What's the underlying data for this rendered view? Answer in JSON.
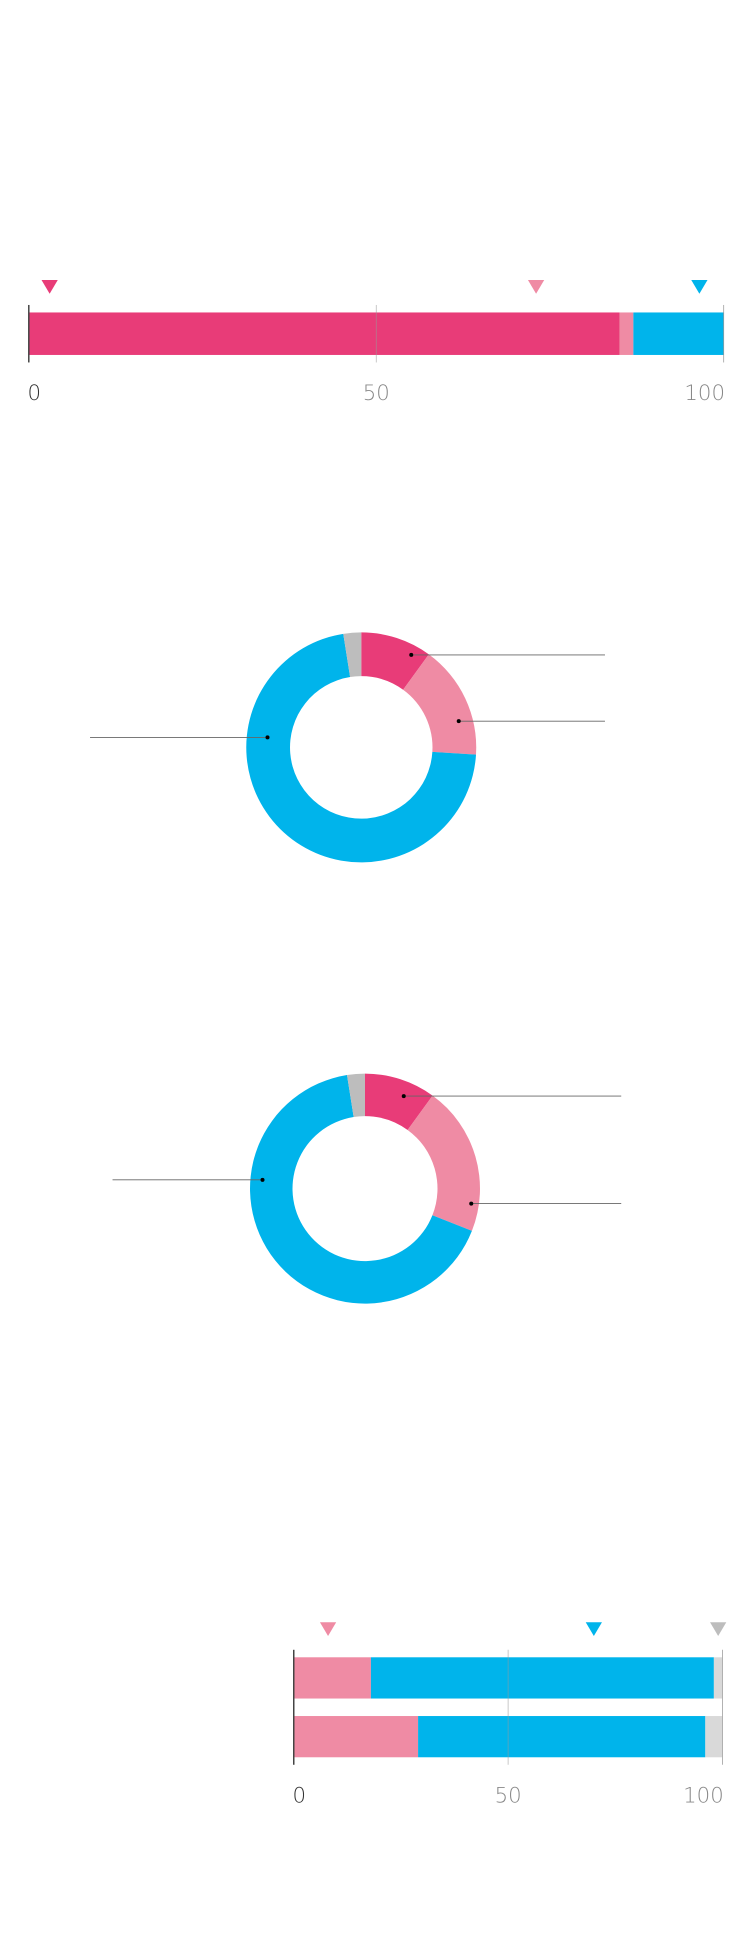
{
  "colors": {
    "magenta": "#e83c78",
    "pink": "#ef8ba4",
    "cyan": "#00b4eb",
    "gray": "#bdbdbd",
    "lightgray": "#d9d9d9",
    "axis": "#555555"
  },
  "chart_data": [
    {
      "type": "bar",
      "orientation": "horizontal-stacked",
      "xlim": [
        0,
        100
      ],
      "ticks": [
        "0",
        "50",
        "100"
      ],
      "rows": [
        {
          "segments": [
            {
              "color": "magenta",
              "value": 85
            },
            {
              "color": "pink",
              "value": 2
            },
            {
              "color": "cyan",
              "value": 13
            }
          ]
        }
      ],
      "markers": [
        {
          "color": "magenta",
          "value": 3
        },
        {
          "color": "pink",
          "value": 73
        },
        {
          "color": "cyan",
          "value": 96.5
        }
      ]
    },
    {
      "type": "pie",
      "donut": true,
      "slices": [
        {
          "color": "magenta",
          "value": 10
        },
        {
          "color": "pink",
          "value": 16
        },
        {
          "color": "cyan",
          "value": 71.5
        },
        {
          "color": "gray",
          "value": 2.5
        }
      ],
      "leader_lines": [
        {
          "slice": 0,
          "side": "right"
        },
        {
          "slice": 1,
          "side": "right"
        },
        {
          "slice": 2,
          "side": "left"
        }
      ]
    },
    {
      "type": "pie",
      "donut": true,
      "slices": [
        {
          "color": "magenta",
          "value": 10
        },
        {
          "color": "pink",
          "value": 21
        },
        {
          "color": "cyan",
          "value": 66.5
        },
        {
          "color": "gray",
          "value": 2.5
        }
      ],
      "leader_lines": [
        {
          "slice": 0,
          "side": "right"
        },
        {
          "slice": 1,
          "side": "right"
        },
        {
          "slice": 2,
          "side": "left"
        }
      ]
    },
    {
      "type": "bar",
      "orientation": "horizontal-stacked",
      "xlim": [
        0,
        100
      ],
      "ticks": [
        "0",
        "50",
        "100"
      ],
      "rows": [
        {
          "segments": [
            {
              "color": "pink",
              "value": 18
            },
            {
              "color": "cyan",
              "value": 80
            },
            {
              "color": "lightgray",
              "value": 2
            }
          ]
        },
        {
          "segments": [
            {
              "color": "pink",
              "value": 29
            },
            {
              "color": "cyan",
              "value": 67
            },
            {
              "color": "lightgray",
              "value": 4
            }
          ]
        }
      ],
      "markers": [
        {
          "color": "pink",
          "value": 8
        },
        {
          "color": "cyan",
          "value": 70
        },
        {
          "color": "gray",
          "value": 99
        }
      ]
    }
  ]
}
